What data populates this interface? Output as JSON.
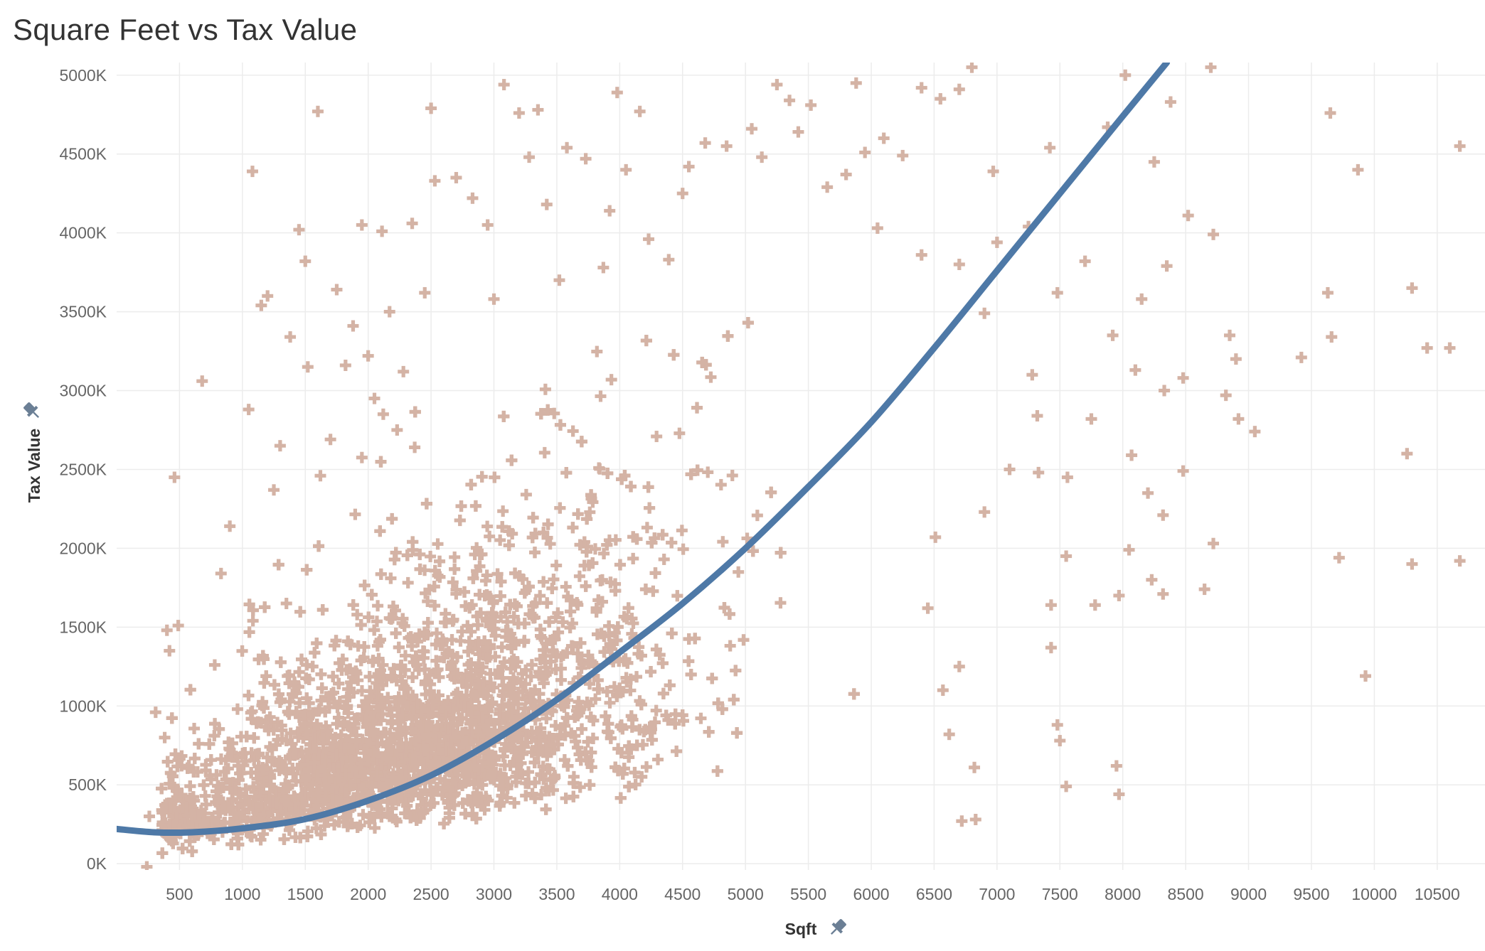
{
  "title": "Square Feet vs Tax Value",
  "chart_data": {
    "type": "scatter",
    "title": "Square Feet vs Tax Value",
    "xlabel": "Sqft",
    "ylabel": "Tax Value",
    "xlim": [
      0,
      10880
    ],
    "ylim": [
      -40000,
      5080000
    ],
    "x_ticks": [
      500,
      1000,
      1500,
      2000,
      2500,
      3000,
      3500,
      4000,
      4500,
      5000,
      5500,
      6000,
      6500,
      7000,
      7500,
      8000,
      8500,
      9000,
      9500,
      10000,
      10500
    ],
    "x_tick_labels": [
      "500",
      "1000",
      "1500",
      "2000",
      "2500",
      "3000",
      "3500",
      "4000",
      "4500",
      "5000",
      "5500",
      "6000",
      "6500",
      "7000",
      "7500",
      "8000",
      "8500",
      "9000",
      "9500",
      "10000",
      "10500"
    ],
    "y_ticks": [
      0,
      500000,
      1000000,
      1500000,
      2000000,
      2500000,
      3000000,
      3500000,
      4000000,
      4500000,
      5000000
    ],
    "y_tick_labels": [
      "0K",
      "500K",
      "1000K",
      "1500K",
      "2000K",
      "2500K",
      "3000K",
      "3500K",
      "4000K",
      "4500K",
      "5000K"
    ],
    "grid": true,
    "marker": "plus",
    "colors": {
      "points": "#d4b3a5",
      "trend": "#4e79a7",
      "grid": "#ececec"
    },
    "points_note": "dense cloud concentrated between 500 and 4500 sqft, below 2000K; sparse outliers shown below",
    "series": [
      {
        "type": "scatter",
        "points": [
          [
            460,
            2450000
          ],
          [
            680,
            3060000
          ],
          [
            1050,
            2880000
          ],
          [
            1080,
            4390000
          ],
          [
            1150,
            3540000
          ],
          [
            1200,
            3600000
          ],
          [
            1300,
            2650000
          ],
          [
            1380,
            3340000
          ],
          [
            1450,
            4020000
          ],
          [
            1500,
            3820000
          ],
          [
            1520,
            3150000
          ],
          [
            1600,
            4770000
          ],
          [
            1750,
            3640000
          ],
          [
            1880,
            3410000
          ],
          [
            1950,
            4050000
          ],
          [
            2050,
            2950000
          ],
          [
            2110,
            4010000
          ],
          [
            2170,
            3500000
          ],
          [
            2230,
            2750000
          ],
          [
            2350,
            4060000
          ],
          [
            2450,
            3620000
          ],
          [
            2500,
            4790000
          ],
          [
            2530,
            4330000
          ],
          [
            2700,
            4350000
          ],
          [
            2830,
            4220000
          ],
          [
            2950,
            4050000
          ],
          [
            3000,
            3580000
          ],
          [
            3080,
            4940000
          ],
          [
            3200,
            4760000
          ],
          [
            3280,
            4480000
          ],
          [
            3350,
            4780000
          ],
          [
            3420,
            4180000
          ],
          [
            3520,
            3700000
          ],
          [
            3580,
            4540000
          ],
          [
            3730,
            4470000
          ],
          [
            3870,
            3780000
          ],
          [
            3920,
            4140000
          ],
          [
            3980,
            4890000
          ],
          [
            4050,
            4400000
          ],
          [
            4160,
            4770000
          ],
          [
            4230,
            3960000
          ],
          [
            4390,
            3830000
          ],
          [
            4500,
            4250000
          ],
          [
            4550,
            4420000
          ],
          [
            4680,
            4570000
          ],
          [
            4850,
            4550000
          ],
          [
            5050,
            4660000
          ],
          [
            5130,
            4480000
          ],
          [
            5250,
            4940000
          ],
          [
            5350,
            4840000
          ],
          [
            5420,
            4640000
          ],
          [
            5520,
            4810000
          ],
          [
            5650,
            4290000
          ],
          [
            5800,
            4370000
          ],
          [
            5880,
            4950000
          ],
          [
            5950,
            4510000
          ],
          [
            6050,
            4030000
          ],
          [
            6100,
            4600000
          ],
          [
            6250,
            4490000
          ],
          [
            6400,
            4920000
          ],
          [
            6550,
            4850000
          ],
          [
            6700,
            4910000
          ],
          [
            6800,
            5050000
          ],
          [
            6970,
            4390000
          ],
          [
            7000,
            3940000
          ],
          [
            7250,
            4040000
          ],
          [
            7420,
            4540000
          ],
          [
            7480,
            3620000
          ],
          [
            7700,
            3820000
          ],
          [
            7880,
            4670000
          ],
          [
            8020,
            5000000
          ],
          [
            8150,
            3580000
          ],
          [
            8250,
            4450000
          ],
          [
            8350,
            3790000
          ],
          [
            8380,
            4830000
          ],
          [
            8520,
            4110000
          ],
          [
            8700,
            5050000
          ],
          [
            8720,
            3990000
          ],
          [
            8850,
            3350000
          ],
          [
            8900,
            3200000
          ],
          [
            9650,
            4760000
          ],
          [
            9870,
            4400000
          ],
          [
            9630,
            3620000
          ],
          [
            9660,
            3340000
          ],
          [
            9420,
            3210000
          ],
          [
            10300,
            3650000
          ],
          [
            10420,
            3270000
          ],
          [
            10600,
            3270000
          ],
          [
            10680,
            4550000
          ],
          [
            10260,
            2600000
          ],
          [
            7280,
            3100000
          ],
          [
            7560,
            2450000
          ],
          [
            7750,
            2820000
          ],
          [
            7920,
            3350000
          ],
          [
            8100,
            3130000
          ],
          [
            8330,
            3000000
          ],
          [
            8480,
            3080000
          ],
          [
            8820,
            2970000
          ],
          [
            8920,
            2820000
          ],
          [
            9050,
            2740000
          ],
          [
            8070,
            2590000
          ],
          [
            8200,
            2350000
          ],
          [
            8480,
            2490000
          ],
          [
            8320,
            2210000
          ],
          [
            8050,
            1990000
          ],
          [
            8230,
            1800000
          ],
          [
            8320,
            1710000
          ],
          [
            8650,
            1740000
          ],
          [
            8720,
            2030000
          ],
          [
            9720,
            1940000
          ],
          [
            9930,
            1190000
          ],
          [
            10300,
            1900000
          ],
          [
            10680,
            1920000
          ],
          [
            7780,
            1640000
          ],
          [
            7970,
            1700000
          ],
          [
            7550,
            1950000
          ],
          [
            7430,
            1640000
          ],
          [
            7430,
            1370000
          ],
          [
            7480,
            880000
          ],
          [
            7500,
            780000
          ],
          [
            7550,
            490000
          ],
          [
            7950,
            620000
          ],
          [
            7970,
            440000
          ],
          [
            6720,
            270000
          ],
          [
            6830,
            280000
          ],
          [
            6820,
            610000
          ],
          [
            6620,
            820000
          ],
          [
            6570,
            1100000
          ],
          [
            6700,
            1250000
          ],
          [
            6450,
            1620000
          ],
          [
            6510,
            2070000
          ],
          [
            6900,
            2230000
          ],
          [
            7100,
            2500000
          ],
          [
            7330,
            2480000
          ],
          [
            7320,
            2840000
          ],
          [
            6900,
            3490000
          ],
          [
            6700,
            3800000
          ],
          [
            6400,
            3860000
          ],
          [
            400,
            1480000
          ],
          [
            420,
            1350000
          ],
          [
            490,
            1510000
          ],
          [
            310,
            960000
          ],
          [
            360,
            340000
          ],
          [
            260,
            300000
          ],
          [
            240,
            -20000
          ],
          [
            780,
            1260000
          ],
          [
            830,
            1840000
          ],
          [
            900,
            2140000
          ],
          [
            1250,
            2370000
          ],
          [
            1350,
            1650000
          ],
          [
            1620,
            2460000
          ],
          [
            1700,
            2690000
          ],
          [
            1820,
            3160000
          ],
          [
            2000,
            3220000
          ],
          [
            2120,
            2850000
          ],
          [
            2280,
            3120000
          ],
          [
            2370,
            2640000
          ]
        ]
      }
    ],
    "trendline": {
      "type": "polynomial",
      "degree": 2,
      "label": "",
      "points": [
        [
          0,
          220000
        ],
        [
          300,
          199000
        ],
        [
          600,
          199000
        ],
        [
          1000,
          224000
        ],
        [
          1500,
          283000
        ],
        [
          2000,
          400000
        ],
        [
          2500,
          560000
        ],
        [
          3000,
          780000
        ],
        [
          3500,
          1040000
        ],
        [
          4000,
          1340000
        ],
        [
          4500,
          1650000
        ],
        [
          5000,
          2000000
        ],
        [
          5500,
          2390000
        ],
        [
          6000,
          2800000
        ],
        [
          6500,
          3270000
        ],
        [
          7000,
          3760000
        ],
        [
          7500,
          4250000
        ],
        [
          8000,
          4740000
        ],
        [
          8350,
          5080000
        ]
      ]
    }
  },
  "axis_titles": {
    "x": "Sqft",
    "y": "Tax Value"
  },
  "icons": {
    "x_pin": "pin-icon",
    "y_pin": "pin-icon"
  }
}
